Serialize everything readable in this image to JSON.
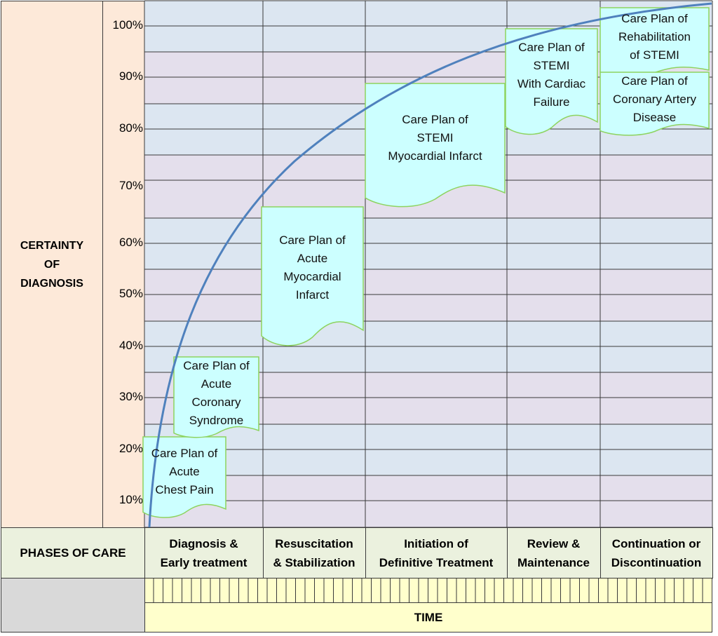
{
  "y_axis": {
    "title": "CERTAINTY\nOF\nDIAGNOSIS",
    "ticks": [
      "100%",
      "90%",
      "80%",
      "70%",
      "60%",
      "50%",
      "40%",
      "30%",
      "20%",
      "10%"
    ]
  },
  "phases": {
    "header": "PHASES OF CARE",
    "items": [
      {
        "label": "Diagnosis &\nEarly treatment"
      },
      {
        "label": "Resuscitation\n& Stabilization"
      },
      {
        "label": "Initiation of\nDefinitive Treatment"
      },
      {
        "label": "Review &\nMaintenance"
      },
      {
        "label": "Continuation or\nDiscontinuation"
      }
    ]
  },
  "time_label": "TIME",
  "care_plans": [
    {
      "text": "Care Plan of\nAcute\nChest Pain"
    },
    {
      "text": "Care Plan of\nAcute\nCoronary\nSyndrome"
    },
    {
      "text": "Care Plan of\nAcute\nMyocardial\nInfarct"
    },
    {
      "text": "Care Plan of\nSTEMI\nMyocardial Infarct"
    },
    {
      "text": "Care Plan of\nSTEMI\nWith Cardiac\nFailure"
    },
    {
      "text": "Care Plan of\nRehabilitation\nof  STEMI"
    },
    {
      "text": "Care Plan of\nCoronary Artery\nDisease"
    }
  ],
  "colors": {
    "axis_panel": "#fde9d9",
    "tick_column": "#fde9d9",
    "band_blue": "#dce6f1",
    "band_purple": "#e4dfec",
    "phase_row": "#ebf1de",
    "time_row": "#ffffcc",
    "corner": "#d9d9d9",
    "note_fill": "#ccffff",
    "note_border": "#8dd35f",
    "curve": "#4f81bd"
  }
}
